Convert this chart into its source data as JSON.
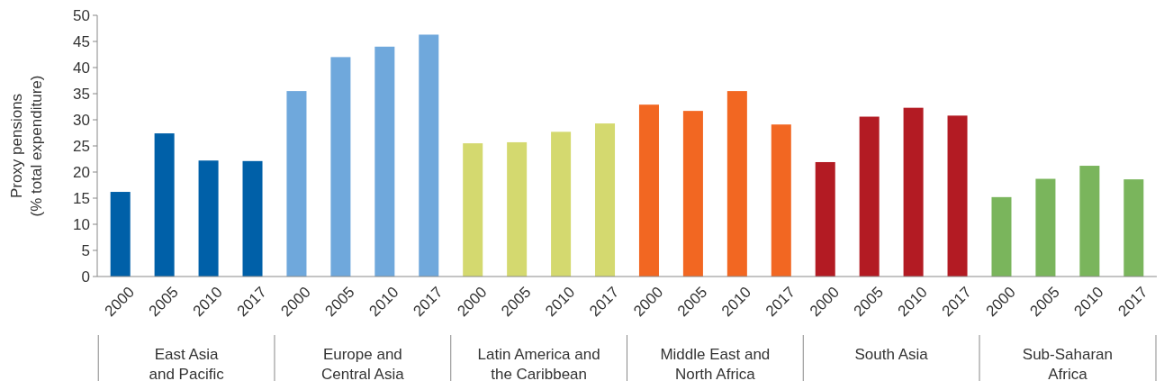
{
  "chart_data": {
    "type": "bar",
    "ylabel": "Proxy pensions\n(% total expenditure)",
    "categories": [
      "2000",
      "2005",
      "2010",
      "2017",
      "2000",
      "2005",
      "2010",
      "2017",
      "2000",
      "2005",
      "2010",
      "2017",
      "2000",
      "2005",
      "2010",
      "2017",
      "2000",
      "2005",
      "2010",
      "2017",
      "2000",
      "2005",
      "2010",
      "2017"
    ],
    "values": [
      16.2,
      27.4,
      22.2,
      22.1,
      35.5,
      42,
      44,
      46.3,
      25.5,
      25.7,
      27.7,
      29.3,
      32.9,
      31.7,
      35.5,
      29.1,
      21.9,
      30.6,
      32.3,
      30.8,
      15.2,
      18.7,
      21.2,
      18.6
    ],
    "colors": [
      "#0060a8",
      "#0060a8",
      "#0060a8",
      "#0060a8",
      "#6fa8dc",
      "#6fa8dc",
      "#6fa8dc",
      "#6fa8dc",
      "#d4d96f",
      "#d4d96f",
      "#d4d96f",
      "#d4d96f",
      "#f26722",
      "#f26722",
      "#f26722",
      "#f26722",
      "#b31b23",
      "#b31b23",
      "#b31b23",
      "#b31b23",
      "#7ab55c",
      "#7ab55c",
      "#7ab55c",
      "#7ab55c"
    ],
    "annotations": [
      "East Asia\nand Pacific",
      "Europe and\nCentral Asia",
      "Latin America and\nthe Caribbean",
      "Middle East and\nNorth Africa",
      "South Asia",
      "Sub-Saharan\nAfrica"
    ],
    "ylim": [
      0,
      50
    ],
    "yticks": [
      0,
      5,
      10,
      15,
      20,
      25,
      30,
      35,
      40,
      45,
      50
    ],
    "grid": false
  }
}
